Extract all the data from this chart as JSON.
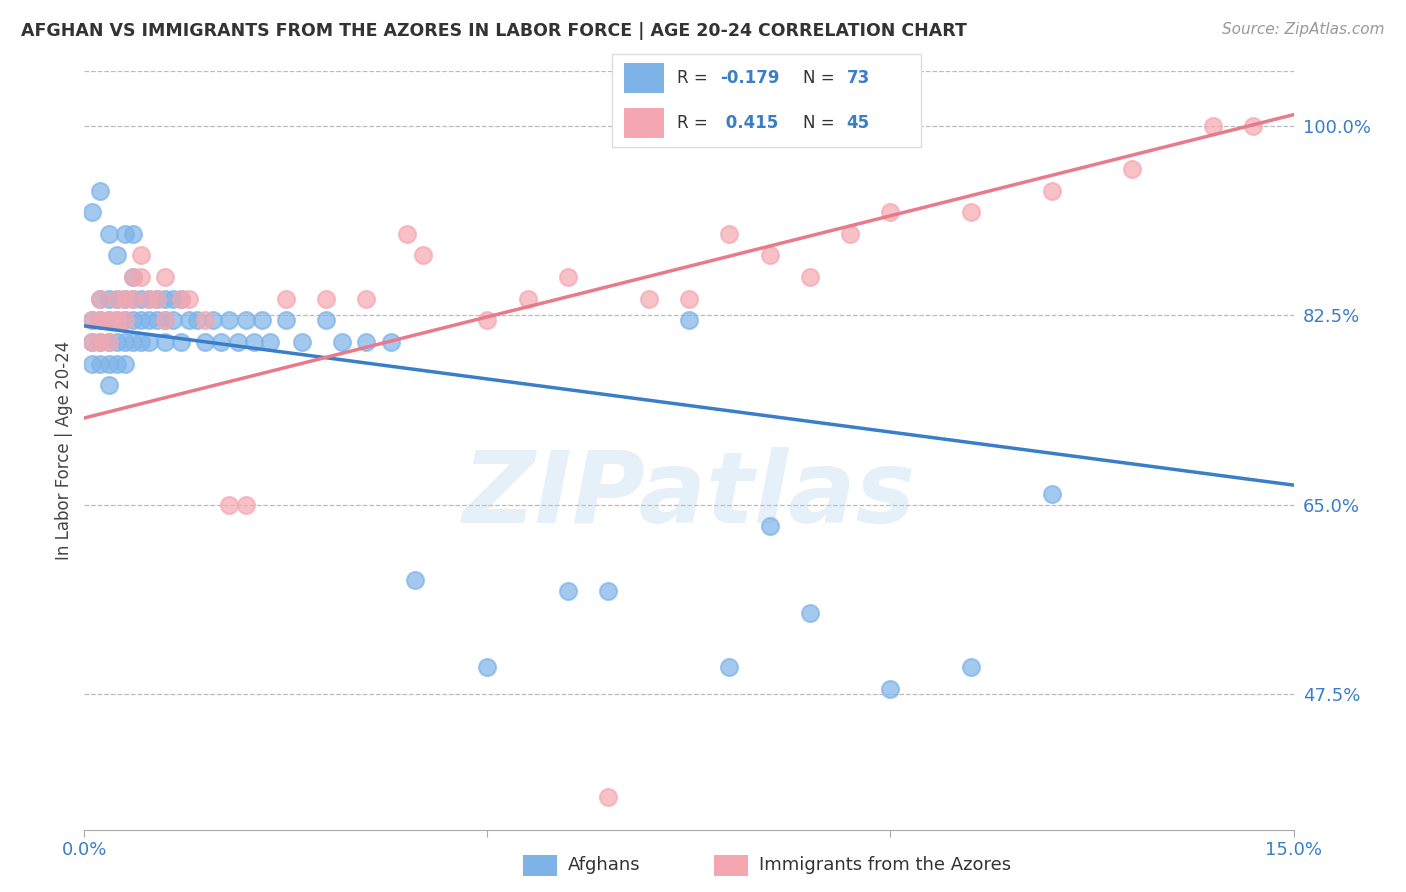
{
  "title": "AFGHAN VS IMMIGRANTS FROM THE AZORES IN LABOR FORCE | AGE 20-24 CORRELATION CHART",
  "source": "Source: ZipAtlas.com",
  "ylabel": "In Labor Force | Age 20-24",
  "xlim": [
    0.0,
    0.15
  ],
  "ylim": [
    0.35,
    1.05
  ],
  "x_ticks": [
    0.0,
    0.05,
    0.1,
    0.15
  ],
  "x_tick_labels": [
    "0.0%",
    "",
    "",
    "15.0%"
  ],
  "y_tick_labels": [
    "47.5%",
    "65.0%",
    "82.5%",
    "100.0%"
  ],
  "y_ticks": [
    0.475,
    0.65,
    0.825,
    1.0
  ],
  "watermark": "ZIPatlas",
  "blue_R": "-0.179",
  "blue_N": "73",
  "pink_R": "0.415",
  "pink_N": "45",
  "blue_color": "#7EB3E8",
  "pink_color": "#F4A7B0",
  "trend_blue": "#3A7DC9",
  "trend_pink": "#E87A8A",
  "background": "#FFFFFF",
  "grid_color": "#BBBBBB",
  "blue_trend_x0": 0.0,
  "blue_trend_x1": 0.15,
  "blue_trend_y0": 0.815,
  "blue_trend_y1": 0.668,
  "pink_trend_x0": 0.0,
  "pink_trend_x1": 0.15,
  "pink_trend_y0": 0.73,
  "pink_trend_y1": 1.01,
  "blue_x": [
    0.001,
    0.001,
    0.001,
    0.002,
    0.002,
    0.002,
    0.002,
    0.003,
    0.003,
    0.003,
    0.003,
    0.003,
    0.004,
    0.004,
    0.004,
    0.004,
    0.005,
    0.005,
    0.005,
    0.005,
    0.006,
    0.006,
    0.006,
    0.006,
    0.007,
    0.007,
    0.007,
    0.008,
    0.008,
    0.008,
    0.009,
    0.009,
    0.01,
    0.01,
    0.01,
    0.011,
    0.011,
    0.012,
    0.012,
    0.013,
    0.014,
    0.015,
    0.016,
    0.017,
    0.018,
    0.019,
    0.02,
    0.021,
    0.022,
    0.023,
    0.025,
    0.027,
    0.03,
    0.032,
    0.035,
    0.038,
    0.041,
    0.05,
    0.06,
    0.065,
    0.075,
    0.08,
    0.085,
    0.09,
    0.1,
    0.11,
    0.12,
    0.001,
    0.002,
    0.003,
    0.004,
    0.005,
    0.006
  ],
  "blue_y": [
    0.82,
    0.8,
    0.78,
    0.84,
    0.82,
    0.8,
    0.78,
    0.84,
    0.82,
    0.8,
    0.78,
    0.76,
    0.84,
    0.82,
    0.8,
    0.78,
    0.84,
    0.82,
    0.8,
    0.78,
    0.86,
    0.84,
    0.82,
    0.8,
    0.84,
    0.82,
    0.8,
    0.84,
    0.82,
    0.8,
    0.84,
    0.82,
    0.84,
    0.82,
    0.8,
    0.84,
    0.82,
    0.84,
    0.8,
    0.82,
    0.82,
    0.8,
    0.82,
    0.8,
    0.82,
    0.8,
    0.82,
    0.8,
    0.82,
    0.8,
    0.82,
    0.8,
    0.82,
    0.8,
    0.8,
    0.8,
    0.58,
    0.5,
    0.57,
    0.57,
    0.82,
    0.5,
    0.63,
    0.55,
    0.48,
    0.5,
    0.66,
    0.92,
    0.94,
    0.9,
    0.88,
    0.9,
    0.9
  ],
  "pink_x": [
    0.001,
    0.001,
    0.002,
    0.002,
    0.002,
    0.003,
    0.003,
    0.004,
    0.004,
    0.005,
    0.005,
    0.006,
    0.006,
    0.007,
    0.007,
    0.008,
    0.009,
    0.01,
    0.01,
    0.012,
    0.013,
    0.015,
    0.018,
    0.02,
    0.025,
    0.03,
    0.035,
    0.04,
    0.042,
    0.05,
    0.055,
    0.06,
    0.065,
    0.07,
    0.075,
    0.08,
    0.085,
    0.09,
    0.095,
    0.1,
    0.11,
    0.12,
    0.13,
    0.14,
    0.145
  ],
  "pink_y": [
    0.82,
    0.8,
    0.84,
    0.82,
    0.8,
    0.82,
    0.8,
    0.84,
    0.82,
    0.84,
    0.82,
    0.86,
    0.84,
    0.88,
    0.86,
    0.84,
    0.84,
    0.86,
    0.82,
    0.84,
    0.84,
    0.82,
    0.65,
    0.65,
    0.84,
    0.84,
    0.84,
    0.9,
    0.88,
    0.82,
    0.84,
    0.86,
    0.38,
    0.84,
    0.84,
    0.9,
    0.88,
    0.86,
    0.9,
    0.92,
    0.92,
    0.94,
    0.96,
    1.0,
    1.0
  ]
}
